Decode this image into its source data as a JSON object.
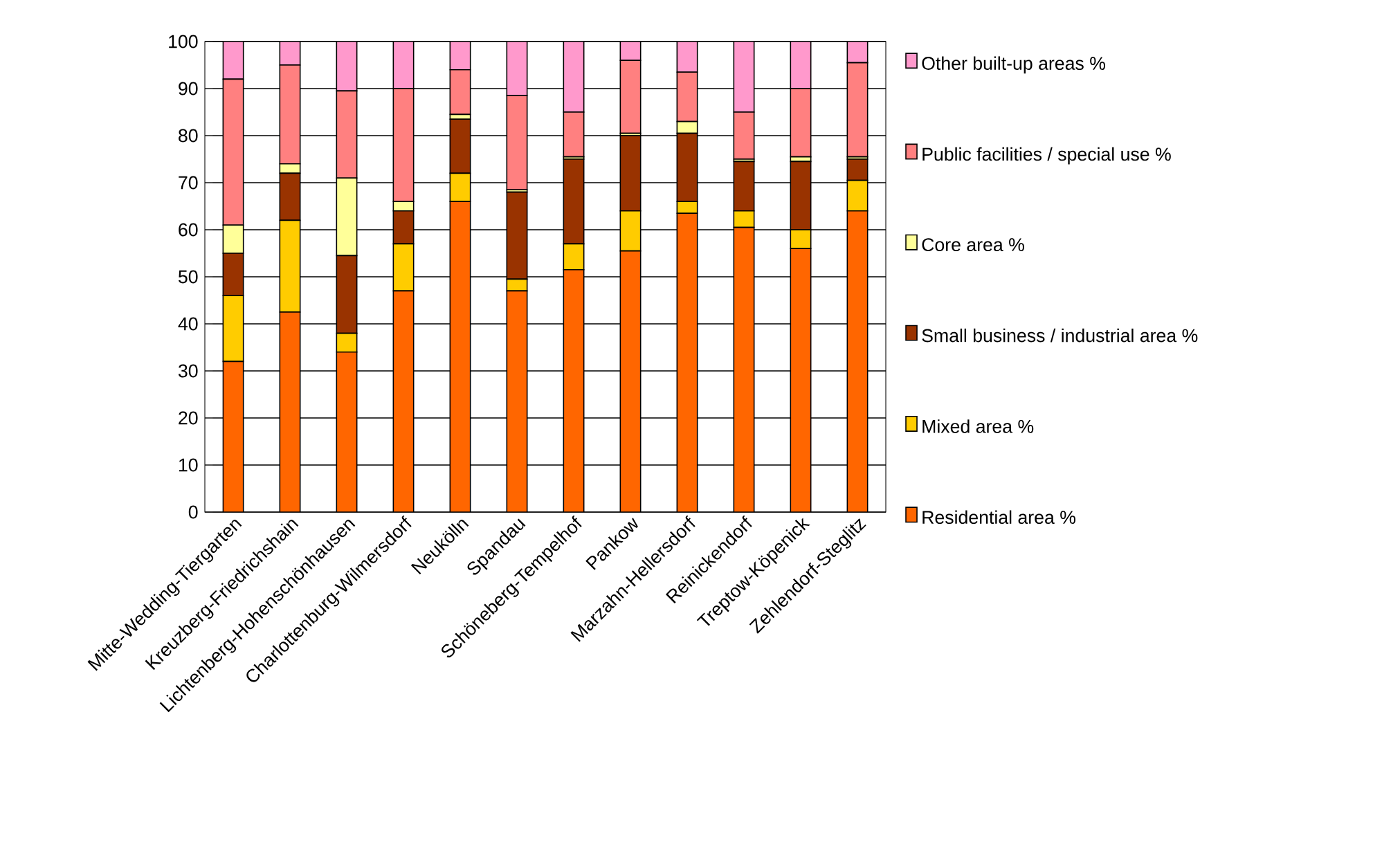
{
  "chart_data": {
    "type": "bar",
    "stacked": true,
    "categories": [
      "Mitte-Wedding-Tiergarten",
      "Kreuzberg-Friedrichshain",
      "Lichtenberg-Hohenschönhausen",
      "Charlottenburg-Wilmersdorf",
      "Neukölln",
      "Spandau",
      "Schöneberg-Tempelhof",
      "Pankow",
      "Marzahn-Hellersdorf",
      "Reinickendorf",
      "Treptow-Köpenick",
      "Zehlendorf-Steglitz"
    ],
    "series": [
      {
        "name": "Residential area  %",
        "color": "#ff6600",
        "values": [
          32,
          42.5,
          34,
          47,
          66,
          47,
          51.5,
          55.5,
          63.5,
          60.5,
          56,
          64
        ]
      },
      {
        "name": "Mixed area %",
        "color": "#ffcc00",
        "values": [
          14,
          19.5,
          4,
          10,
          6,
          2.5,
          5.5,
          8.5,
          2.5,
          3.5,
          4,
          6.5
        ]
      },
      {
        "name": "Small business / industrial area %",
        "color": "#993300",
        "values": [
          9,
          10,
          16.5,
          7,
          11.5,
          18.5,
          18,
          16,
          14.5,
          10.5,
          14.5,
          4.5
        ]
      },
      {
        "name": "Core area %",
        "color": "#ffff99",
        "values": [
          6,
          2,
          16.5,
          2,
          1,
          0.5,
          0.5,
          0.5,
          2.5,
          0.5,
          1,
          0.5
        ]
      },
      {
        "name": "Public facilities / special use %",
        "color": "#ff8080",
        "values": [
          31,
          21,
          18.5,
          24,
          9.5,
          20,
          9.5,
          15.5,
          10.5,
          10,
          14.5,
          20
        ]
      },
      {
        "name": "Other built-up areas %",
        "color": "#ff99cc",
        "values": [
          8,
          5,
          10.5,
          10,
          6,
          11.5,
          15,
          4,
          6.5,
          15,
          10,
          4.5
        ]
      }
    ],
    "ylim": [
      0,
      100
    ],
    "yticks": [
      0,
      10,
      20,
      30,
      40,
      50,
      60,
      70,
      80,
      90,
      100
    ],
    "grid": "y",
    "legend": "right"
  }
}
